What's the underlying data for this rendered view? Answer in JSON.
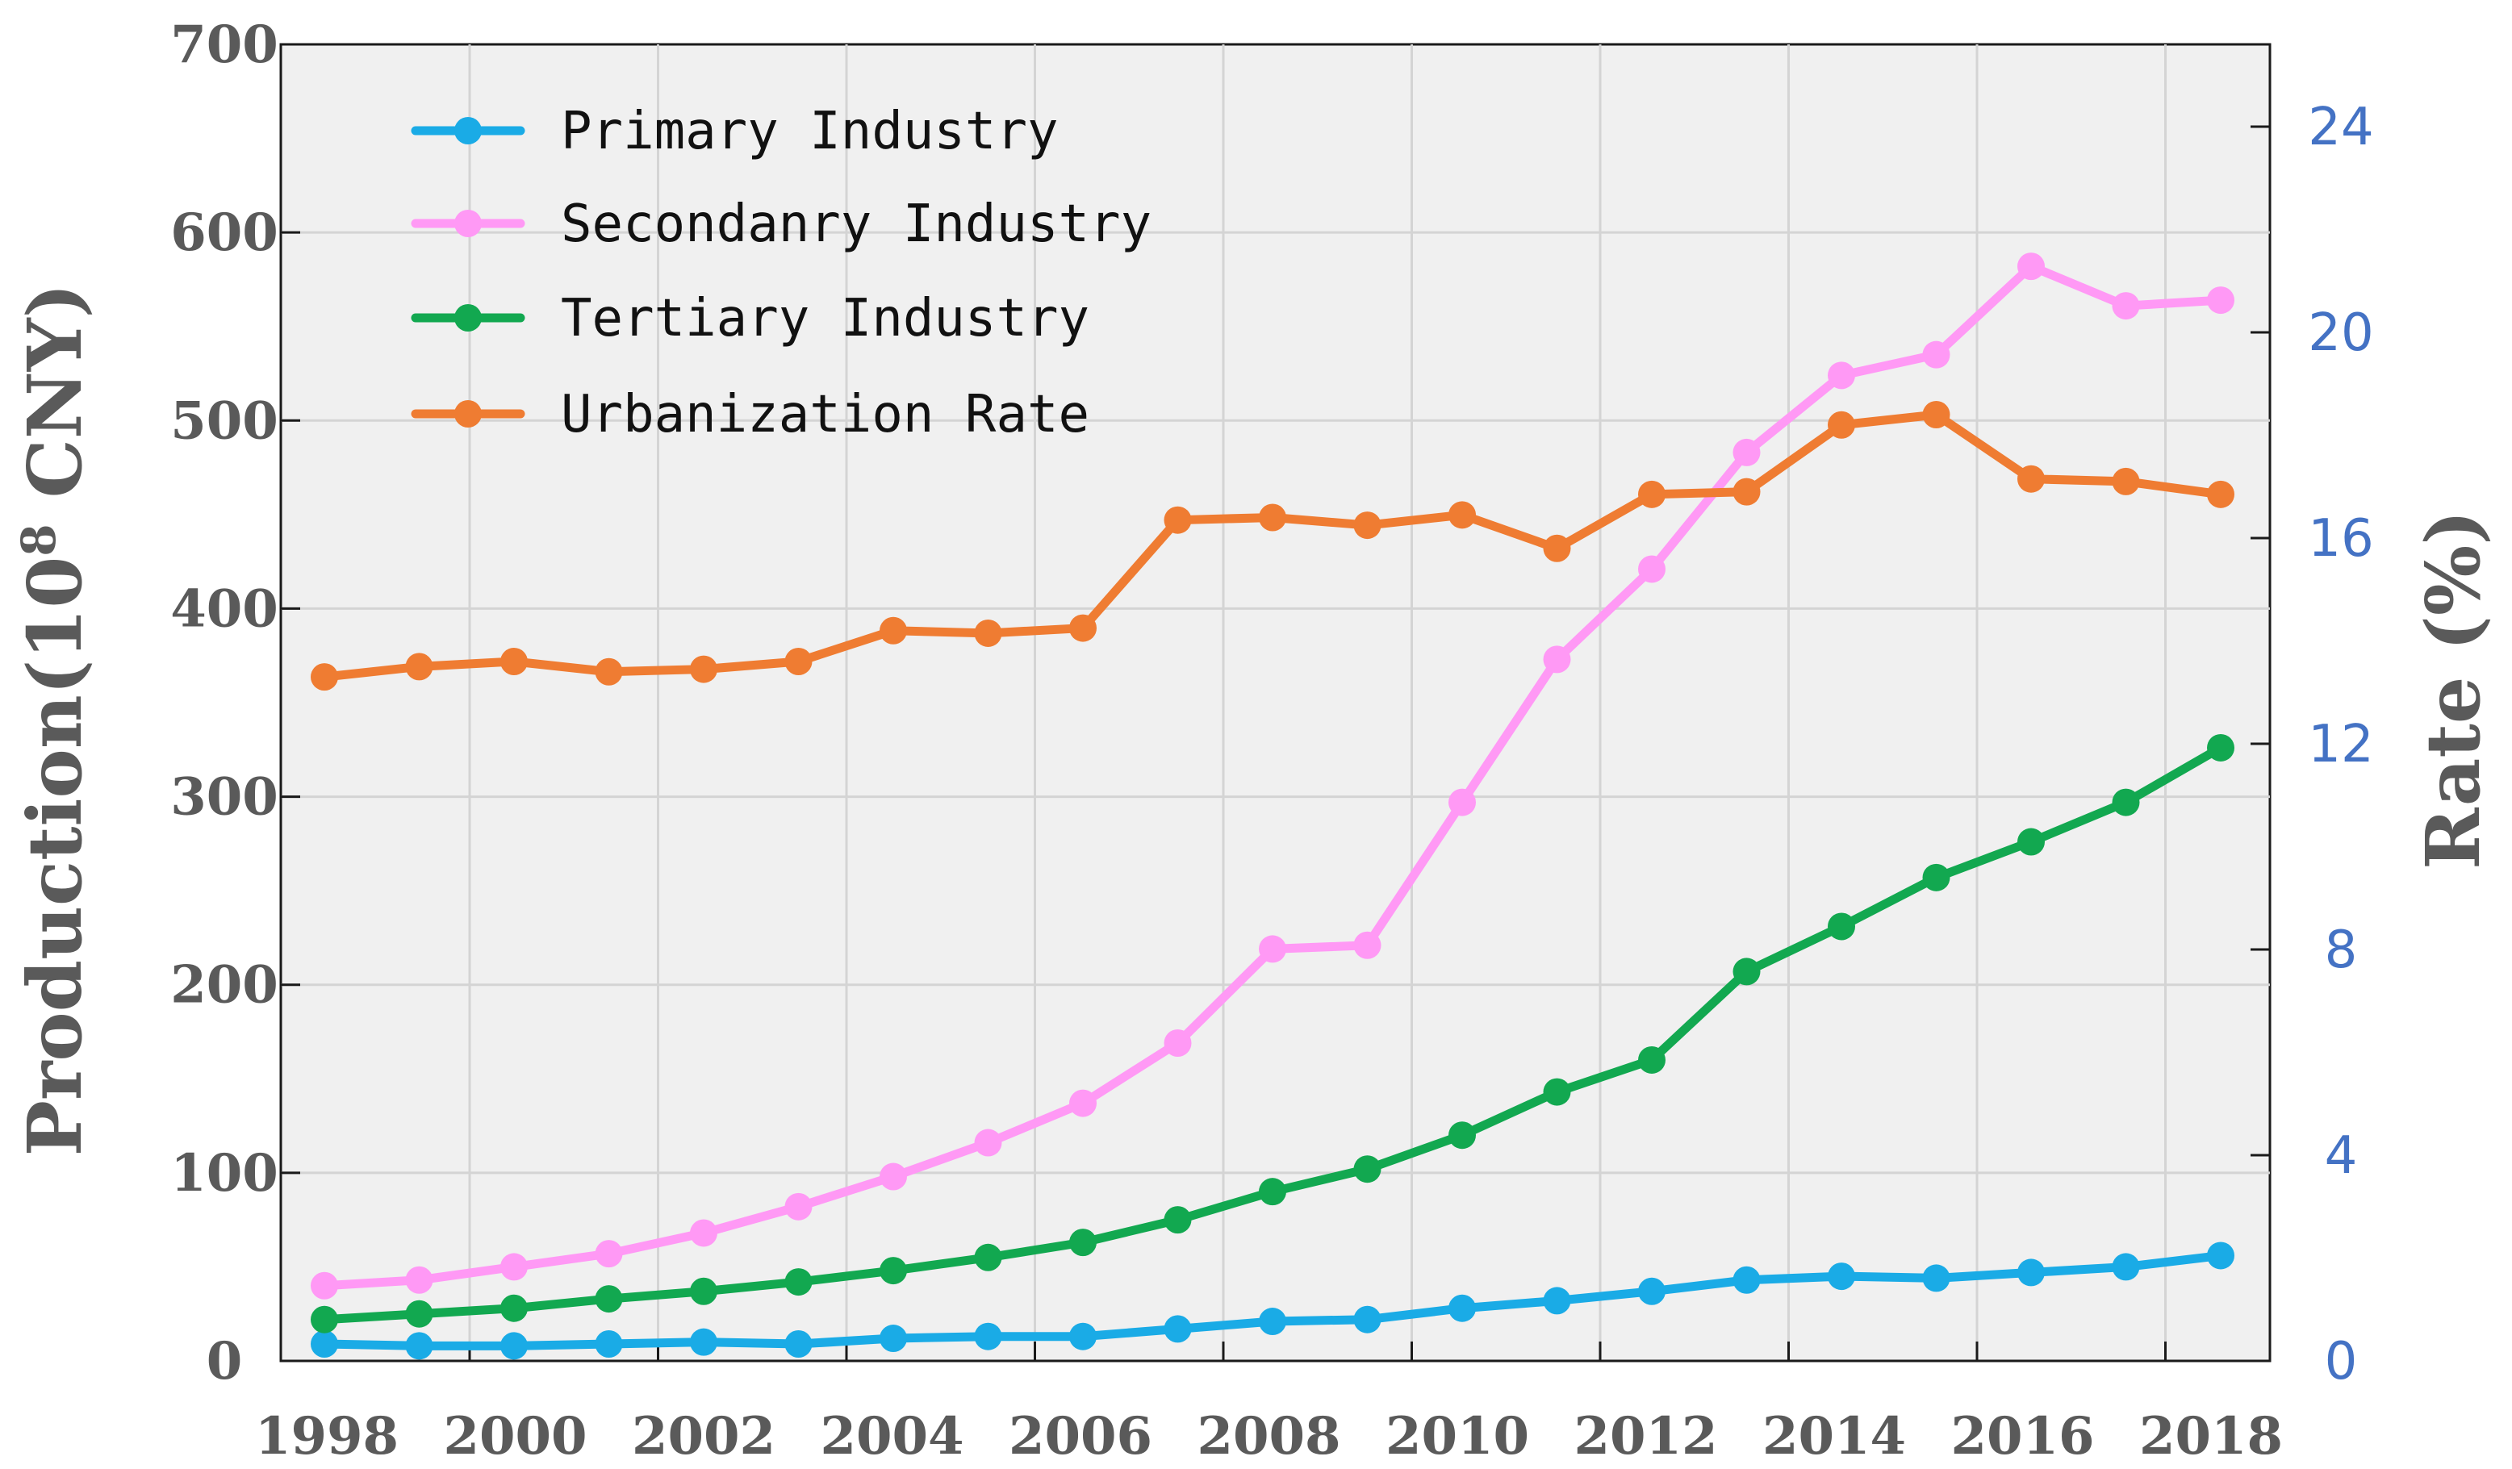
{
  "chart_data": {
    "type": "line",
    "title": "",
    "xlabel": "",
    "x": [
      1998,
      1999,
      2000,
      2001,
      2002,
      2003,
      2004,
      2005,
      2006,
      2007,
      2008,
      2009,
      2010,
      2011,
      2012,
      2013,
      2014,
      2015,
      2016,
      2017,
      2018
    ],
    "x_ticks": [
      "1998",
      "2000",
      "2002",
      "2004",
      "2006",
      "2008",
      "2010",
      "2012",
      "2014",
      "2016",
      "2018"
    ],
    "y_left": {
      "label_main": "Production(10",
      "label_sup": "8",
      "label_end": " CNY)",
      "ylim": [
        0,
        700
      ],
      "ticks": [
        "0",
        "100",
        "200",
        "300",
        "400",
        "500",
        "600",
        "700"
      ]
    },
    "y_right": {
      "label": "Rate (%)",
      "ylim": [
        0,
        25.6
      ],
      "ticks": [
        "0",
        "4",
        "8",
        "12",
        "16",
        "20",
        "24"
      ]
    },
    "series": [
      {
        "name": "Primary Industry",
        "axis": "left",
        "color": "#1aabe6",
        "values": [
          9,
          8,
          8,
          9,
          10,
          9,
          12,
          13,
          13,
          17,
          21,
          22,
          28,
          32,
          37,
          43,
          45,
          44,
          47,
          50,
          56
        ]
      },
      {
        "name": "Secondanry Industry",
        "axis": "left",
        "color": "#ff99f5",
        "values": [
          40,
          43,
          50,
          57,
          68,
          82,
          98,
          116,
          137,
          169,
          219,
          221,
          297,
          373,
          421,
          483,
          524,
          535,
          582,
          561,
          564
        ]
      },
      {
        "name": "Tertiary Industry",
        "axis": "left",
        "color": "#12a850",
        "values": [
          22,
          25,
          28,
          33,
          37,
          42,
          48,
          55,
          63,
          75,
          90,
          102,
          120,
          143,
          160,
          207,
          231,
          257,
          276,
          297,
          326
        ]
      },
      {
        "name": "Urbanization Rate",
        "axis": "right",
        "color": "#ef7c32",
        "values": [
          13.3,
          13.5,
          13.6,
          13.4,
          13.45,
          13.6,
          14.2,
          14.15,
          14.25,
          16.35,
          16.4,
          16.25,
          16.45,
          15.8,
          16.85,
          16.9,
          18.2,
          18.4,
          17.15,
          17.1,
          16.85
        ]
      }
    ]
  }
}
